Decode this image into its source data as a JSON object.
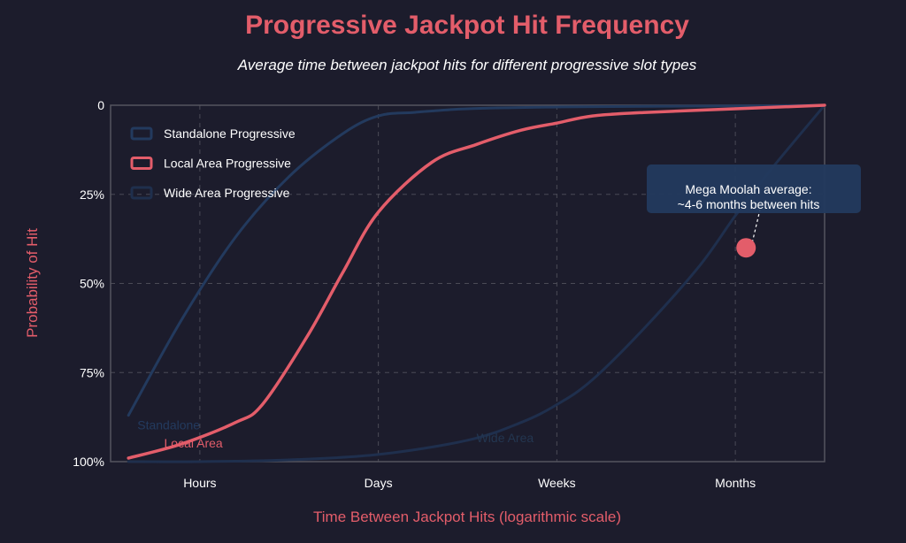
{
  "colors": {
    "background": "#1c1c2c",
    "title": "#e35d6a",
    "axis_label": "#e35d6a",
    "axis_line": "#55555f",
    "grid": "#4a4a56",
    "annotation_box": "#233a5e",
    "annotation_point": "#e35d6a"
  },
  "chart_data": {
    "type": "line",
    "title": "Progressive Jackpot Hit Frequency",
    "subtitle": "Average time between jackpot hits for different progressive slot types",
    "xlabel": "Time Between Jackpot Hits (logarithmic scale)",
    "ylabel": "Probability of Hit",
    "x_scale": "log",
    "x_categories": [
      "Hours",
      "Days",
      "Weeks",
      "Months"
    ],
    "xlim": [
      0.5,
      4.5
    ],
    "y_ticks": [
      "0",
      "25%",
      "50%",
      "75%",
      "100%"
    ],
    "y_tick_values": [
      0,
      25,
      50,
      75,
      100
    ],
    "ylim": [
      0,
      100
    ],
    "y_inverted": true,
    "grid": true,
    "legend_position": "top-left",
    "series": [
      {
        "name": "Standalone Progressive",
        "color": "#233a5e",
        "x": [
          0.6,
          0.9,
          1.2,
          1.5,
          1.8,
          2.0,
          2.2,
          2.5,
          3.0,
          3.5,
          4.0,
          4.5
        ],
        "y": [
          87,
          60,
          37,
          20,
          8,
          3,
          2,
          1,
          0.5,
          0.3,
          0.2,
          0
        ]
      },
      {
        "name": "Local Area Progressive",
        "color": "#e35d6a",
        "x": [
          0.6,
          0.9,
          1.2,
          1.35,
          1.6,
          1.8,
          2.0,
          2.3,
          2.55,
          2.8,
          3.0,
          3.2,
          3.5,
          4.0,
          4.5
        ],
        "y": [
          99,
          95,
          89,
          84,
          65,
          47,
          30,
          16,
          11,
          7,
          5,
          3,
          2,
          1,
          0
        ]
      },
      {
        "name": "Wide Area Progressive",
        "color": "#1f2f4d",
        "x": [
          0.6,
          1.0,
          1.5,
          2.0,
          2.5,
          2.8,
          3.0,
          3.2,
          3.5,
          3.8,
          4.0,
          4.2,
          4.5
        ],
        "y": [
          100,
          100,
          99.5,
          98,
          94,
          89,
          84,
          77,
          62,
          45,
          31,
          18,
          0
        ]
      }
    ],
    "inline_labels": [
      {
        "text": "Standalone",
        "color": "#233a5e",
        "x": 0.65,
        "y": 91
      },
      {
        "text": "Local Area",
        "color": "#e35d6a",
        "x": 0.8,
        "y": 96
      },
      {
        "text": "Wide Area",
        "color": "#233650",
        "x": 2.55,
        "y": 94.5
      }
    ],
    "annotation": {
      "lines": [
        "Mega Moolah average:",
        "~4-6 months between hits"
      ],
      "point": {
        "x": 4.06,
        "y": 40
      }
    }
  }
}
